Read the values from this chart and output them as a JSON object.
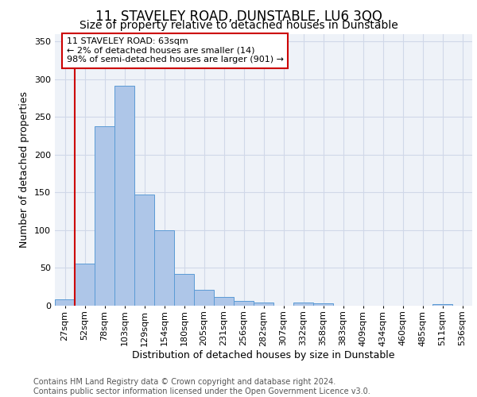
{
  "title": "11, STAVELEY ROAD, DUNSTABLE, LU6 3QQ",
  "subtitle": "Size of property relative to detached houses in Dunstable",
  "xlabel": "Distribution of detached houses by size in Dunstable",
  "ylabel": "Number of detached properties",
  "categories": [
    "27sqm",
    "52sqm",
    "78sqm",
    "103sqm",
    "129sqm",
    "154sqm",
    "180sqm",
    "205sqm",
    "231sqm",
    "256sqm",
    "282sqm",
    "307sqm",
    "332sqm",
    "358sqm",
    "383sqm",
    "409sqm",
    "434sqm",
    "460sqm",
    "485sqm",
    "511sqm",
    "536sqm"
  ],
  "values": [
    8,
    56,
    238,
    291,
    147,
    100,
    42,
    21,
    12,
    6,
    4,
    0,
    4,
    3,
    0,
    0,
    0,
    0,
    0,
    2,
    0
  ],
  "bar_color": "#aec6e8",
  "bar_edge_color": "#5b9bd5",
  "vline_color": "#cc0000",
  "annotation_text": "11 STAVELEY ROAD: 63sqm\n← 2% of detached houses are smaller (14)\n98% of semi-detached houses are larger (901) →",
  "annotation_box_color": "#ffffff",
  "annotation_box_edge": "#cc0000",
  "ylim": [
    0,
    360
  ],
  "yticks": [
    0,
    50,
    100,
    150,
    200,
    250,
    300,
    350
  ],
  "grid_color": "#d0d8e8",
  "background_color": "#eef2f8",
  "footer_text": "Contains HM Land Registry data © Crown copyright and database right 2024.\nContains public sector information licensed under the Open Government Licence v3.0.",
  "title_fontsize": 12,
  "subtitle_fontsize": 10,
  "xlabel_fontsize": 9,
  "ylabel_fontsize": 9,
  "tick_fontsize": 8,
  "annotation_fontsize": 8,
  "footer_fontsize": 7
}
